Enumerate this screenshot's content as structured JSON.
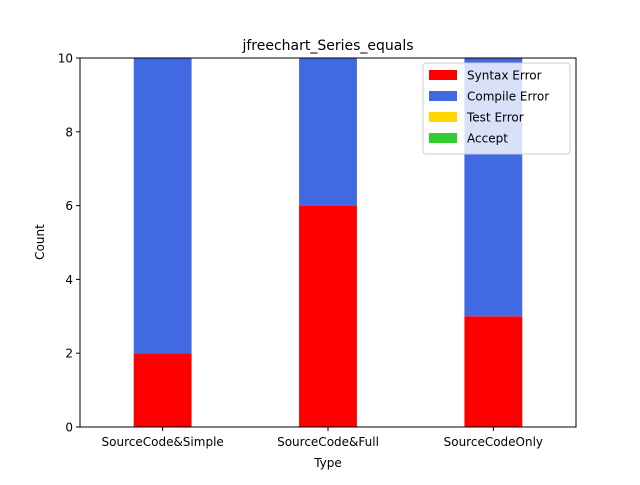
{
  "chart_data": {
    "type": "bar",
    "stacked": true,
    "title": "jfreechart_Series_equals",
    "xlabel": "Type",
    "ylabel": "Count",
    "ylim": [
      0,
      10
    ],
    "yticks": [
      "0",
      "2",
      "4",
      "6",
      "8",
      "10"
    ],
    "categories": [
      "SourceCode&Simple",
      "SourceCode&Full",
      "SourceCodeOnly"
    ],
    "series": [
      {
        "name": "Syntax Error",
        "color": "#ff0000",
        "values": [
          2,
          6,
          3
        ]
      },
      {
        "name": "Compile Error",
        "color": "#4169e1",
        "values": [
          8,
          4,
          7
        ]
      },
      {
        "name": "Test Error",
        "color": "#ffd700",
        "values": [
          0,
          0,
          0
        ]
      },
      {
        "name": "Accept",
        "color": "#32cd32",
        "values": [
          0,
          0,
          0
        ]
      }
    ],
    "grid": false,
    "legend_position": "top-right"
  }
}
